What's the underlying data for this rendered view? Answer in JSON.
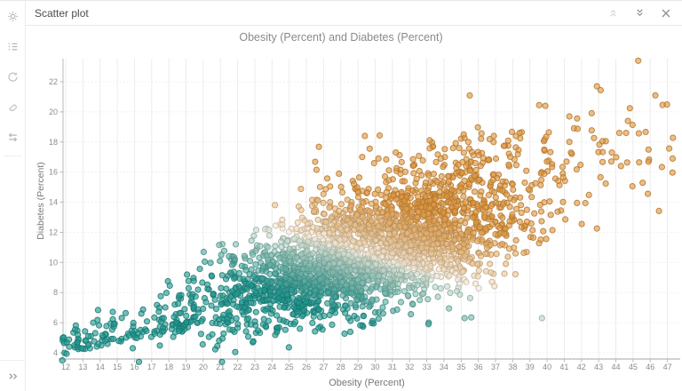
{
  "window": {
    "title": "Scatter plot"
  },
  "titlebar": {
    "buttons": [
      {
        "name": "collapse-up",
        "enabled": false
      },
      {
        "name": "collapse-down",
        "enabled": true
      },
      {
        "name": "close",
        "enabled": true
      }
    ]
  },
  "sidebar": {
    "icons": [
      "settings-gear",
      "legend-list",
      "refresh",
      "eraser",
      "swap-axes"
    ],
    "bottom_icon": "expand-panel"
  },
  "colors": {
    "teal": "#1f978f",
    "orange": "#e0963c",
    "mid": "#faf2e2",
    "grid": "#ececec",
    "axis": "#b8b8b8",
    "tick_text": "#8c8c8c",
    "icon_gray": "#b5b5b5",
    "icon_dark": "#8f8f8f",
    "icon_disabled": "#d6d6d6"
  },
  "chart_data": {
    "type": "scatter",
    "title": "Obesity (Percent) and Diabetes (Percent)",
    "xlabel": "Obesity (Percent)",
    "ylabel": "Diabetes (Percent)",
    "xlim": [
      11.5,
      47.6
    ],
    "ylim": [
      3.5,
      23.6
    ],
    "x_ticks": [
      12,
      13,
      14,
      15,
      16,
      17,
      18,
      19,
      20,
      21,
      22,
      23,
      24,
      25,
      26,
      27,
      28,
      29,
      30,
      31,
      32,
      33,
      34,
      35,
      36,
      37,
      38,
      39,
      40,
      41,
      42,
      43,
      44,
      45,
      46,
      47
    ],
    "y_ticks": [
      4,
      6,
      8,
      10,
      12,
      14,
      16,
      18,
      20,
      22
    ],
    "grid": true,
    "legend": false,
    "point_style": {
      "radius": 3.1,
      "fill_opacity": 0.62,
      "stroke_opacity": 0.85,
      "stroke_darken": 0.8
    },
    "color_encoding": {
      "description": "diverging ramp on s = x + 3y; teal at low values, pale cream near s_mid, orange at high values",
      "teal": "#1f978f",
      "mid": "#faf2e2",
      "orange": "#e0963c",
      "s_mid": 61,
      "s_halfwidth": 13,
      "gamma": 0.7
    },
    "generator": {
      "seed": 20,
      "count": 2950,
      "x_mean": 29.6,
      "x_sd": 4.6,
      "y_intercept": 10.55,
      "slope": 0.355,
      "residual_sd_base": 1.15,
      "residual_sd_per_x": 0.035,
      "upper_skew": 1.28,
      "low_tail_frac": 0.035,
      "low_tail_x": [
        11.7,
        19.5
      ],
      "high_tail_frac": 0.015,
      "high_tail_x": [
        39.5,
        47.4
      ],
      "x_range": [
        11.7,
        47.4
      ],
      "y_range": [
        3.4,
        23.4
      ]
    },
    "fixed_points": [
      {
        "x": 11.8,
        "y": 3.5
      },
      {
        "x": 12.2,
        "y": 4.4
      },
      {
        "x": 12.9,
        "y": 4.3
      },
      {
        "x": 13.3,
        "y": 4.5
      },
      {
        "x": 13.6,
        "y": 6.0
      },
      {
        "x": 14.3,
        "y": 4.8
      },
      {
        "x": 14.8,
        "y": 5.9
      },
      {
        "x": 15.9,
        "y": 4.3
      },
      {
        "x": 16.2,
        "y": 5.3
      },
      {
        "x": 17.7,
        "y": 6.3
      },
      {
        "x": 18.6,
        "y": 7.8
      },
      {
        "x": 19.9,
        "y": 6.1
      },
      {
        "x": 45.3,
        "y": 23.4
      },
      {
        "x": 42.9,
        "y": 21.7
      },
      {
        "x": 46.3,
        "y": 21.1
      },
      {
        "x": 39.9,
        "y": 20.4
      },
      {
        "x": 41.3,
        "y": 19.7
      },
      {
        "x": 44.7,
        "y": 19.4
      },
      {
        "x": 44.2,
        "y": 18.6
      },
      {
        "x": 44.6,
        "y": 18.6
      },
      {
        "x": 38.4,
        "y": 18.6
      },
      {
        "x": 36.9,
        "y": 18.4
      },
      {
        "x": 45.9,
        "y": 17.5
      },
      {
        "x": 47.3,
        "y": 16.9
      },
      {
        "x": 44.3,
        "y": 16.4
      },
      {
        "x": 29.4,
        "y": 18.4
      },
      {
        "x": 31.2,
        "y": 17.3
      },
      {
        "x": 39.7,
        "y": 6.3
      },
      {
        "x": 35.2,
        "y": 6.3
      },
      {
        "x": 33.1,
        "y": 5.9
      }
    ]
  }
}
